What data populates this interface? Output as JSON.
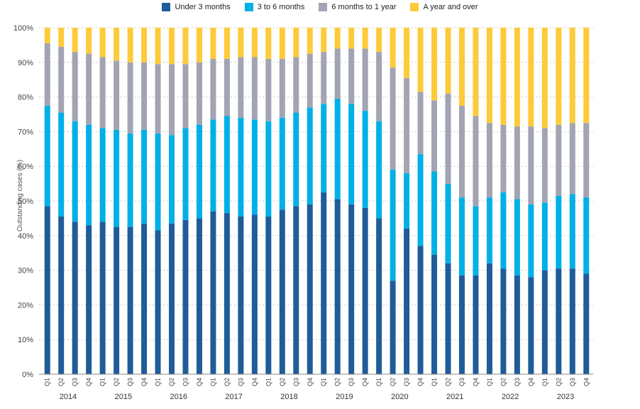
{
  "chart_data": {
    "type": "bar",
    "stacked": true,
    "ylabel": "Outstanding cases (%)",
    "ylim": [
      0,
      100
    ],
    "yticks": [
      "0%",
      "10%",
      "20%",
      "30%",
      "40%",
      "50%",
      "60%",
      "70%",
      "80%",
      "90%",
      "100%"
    ],
    "grid": true,
    "legend_position": "top",
    "categories": [
      "Q1",
      "Q2",
      "Q3",
      "Q4",
      "Q1",
      "Q2",
      "Q3",
      "Q4",
      "Q1",
      "Q2",
      "Q3",
      "Q4",
      "Q1",
      "Q2",
      "Q3",
      "Q4",
      "Q1",
      "Q2",
      "Q3",
      "Q4",
      "Q1",
      "Q2",
      "Q3",
      "Q4",
      "Q1",
      "Q2",
      "Q3",
      "Q4",
      "Q1",
      "Q2",
      "Q3",
      "Q4",
      "Q1",
      "Q2",
      "Q3",
      "Q4",
      "Q1",
      "Q2",
      "Q3",
      "Q4"
    ],
    "years": [
      "2014",
      "2015",
      "2016",
      "2017",
      "2018",
      "2019",
      "2020",
      "2021",
      "2022",
      "2023"
    ],
    "series": [
      {
        "name": "Under 3 months",
        "color": "#1f5c99",
        "values": [
          48.5,
          45.5,
          44,
          43,
          44,
          42.5,
          42.5,
          43.5,
          41.5,
          43.5,
          44.5,
          45,
          47,
          46.5,
          45.5,
          46,
          45.5,
          47.5,
          48.5,
          49,
          52.5,
          50.5,
          49,
          48,
          45,
          27,
          42,
          37,
          34.5,
          32,
          28.5,
          28.5,
          32,
          30.5,
          28.5,
          28,
          30,
          30.5,
          30.5,
          29
        ]
      },
      {
        "name": "3 to 6 months",
        "color": "#00b0e6",
        "values": [
          29,
          30,
          29,
          29,
          27,
          28,
          27,
          27,
          28,
          25.5,
          26.5,
          27,
          26.5,
          28,
          28.5,
          27.5,
          27.5,
          26.5,
          27,
          28,
          25.5,
          29,
          29,
          28,
          28,
          32,
          16,
          26.5,
          24,
          23,
          22.5,
          20,
          19,
          22,
          22,
          21,
          19.5,
          21,
          21.5,
          22
        ]
      },
      {
        "name": "6 months to 1 year",
        "color": "#a2a4b2",
        "values": [
          18,
          19,
          20,
          20.5,
          20.5,
          20,
          20.5,
          19.5,
          20,
          20.5,
          18.5,
          18,
          17.5,
          16.5,
          17.5,
          18,
          18,
          17,
          16,
          15.5,
          15,
          14.5,
          16,
          18,
          20,
          29.5,
          27.5,
          18,
          20.5,
          26,
          26.5,
          26,
          21.5,
          19.5,
          21,
          22.5,
          21.5,
          20.5,
          20.5,
          21.5
        ]
      },
      {
        "name": "A year and over",
        "color": "#fdcb3a",
        "values": [
          4.5,
          5.5,
          7,
          7.5,
          8.5,
          9.5,
          10,
          10,
          10.5,
          10.5,
          10.5,
          10,
          9,
          9,
          8.5,
          8.5,
          9,
          9,
          8.5,
          7.5,
          7,
          6,
          6,
          6,
          7,
          11.5,
          14.5,
          18.5,
          21,
          19,
          22.5,
          25.5,
          27.5,
          28,
          28.5,
          28.5,
          29,
          28,
          27.5,
          27.5
        ]
      }
    ]
  }
}
